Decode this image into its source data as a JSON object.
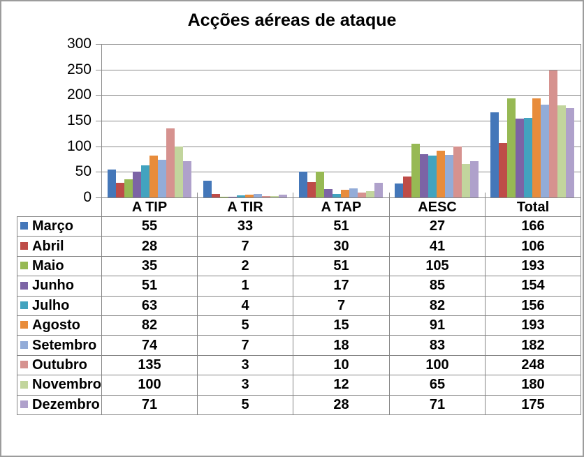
{
  "title": "Acções aéreas de ataque",
  "chart_data": {
    "type": "bar",
    "title": "Acções aéreas de ataque",
    "categories": [
      "A TIP",
      "A TIR",
      "A TAP",
      "AESC",
      "Total"
    ],
    "series": [
      {
        "name": "Março",
        "color": "#4477B9",
        "values": [
          55,
          33,
          51,
          27,
          166
        ]
      },
      {
        "name": "Abril",
        "color": "#BE4C48",
        "values": [
          28,
          7,
          30,
          41,
          106
        ]
      },
      {
        "name": "Maio",
        "color": "#97B954",
        "values": [
          35,
          2,
          51,
          105,
          193
        ]
      },
      {
        "name": "Junho",
        "color": "#7C64A5",
        "values": [
          51,
          1,
          17,
          85,
          154
        ]
      },
      {
        "name": "Julho",
        "color": "#42A3BF",
        "values": [
          63,
          4,
          7,
          82,
          156
        ]
      },
      {
        "name": "Agosto",
        "color": "#E88C3B",
        "values": [
          82,
          5,
          15,
          91,
          193
        ]
      },
      {
        "name": "Setembro",
        "color": "#93ACD8",
        "values": [
          74,
          7,
          18,
          83,
          182
        ]
      },
      {
        "name": "Outubro",
        "color": "#D6928F",
        "values": [
          135,
          3,
          10,
          100,
          248
        ]
      },
      {
        "name": "Novembro",
        "color": "#C2D59D",
        "values": [
          100,
          3,
          12,
          65,
          180
        ]
      },
      {
        "name": "Dezembro",
        "color": "#AFA1CB",
        "values": [
          71,
          5,
          28,
          71,
          175
        ]
      }
    ],
    "ylim": [
      0,
      300
    ],
    "y_ticks": [
      300,
      250,
      200,
      150,
      100,
      50,
      0
    ],
    "grid": true,
    "xlabel": "",
    "ylabel": "",
    "legend_position": "data-table-left-column"
  },
  "colors": {
    "grid": "#8A8A8A",
    "table_border": "#848484",
    "frame_border": "#9C9C9C",
    "background": "#FFFFFF",
    "text": "#000000"
  }
}
